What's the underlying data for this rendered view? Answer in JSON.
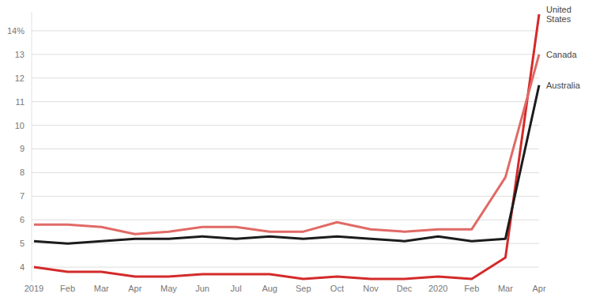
{
  "chart_data": {
    "type": "line",
    "categories": [
      "2019",
      "Feb",
      "Mar",
      "Apr",
      "May",
      "Jun",
      "Jul",
      "Aug",
      "Sep",
      "Oct",
      "Nov",
      "Dec",
      "2020",
      "Feb",
      "Mar",
      "Apr"
    ],
    "series": [
      {
        "name": "United States",
        "color": "#d42a2a",
        "values": [
          4.0,
          3.8,
          3.8,
          3.6,
          3.6,
          3.7,
          3.7,
          3.7,
          3.5,
          3.6,
          3.5,
          3.5,
          3.6,
          3.5,
          4.4,
          14.7
        ]
      },
      {
        "name": "Canada",
        "color": "#e06a66",
        "values": [
          5.8,
          5.8,
          5.7,
          5.4,
          5.5,
          5.7,
          5.7,
          5.5,
          5.5,
          5.9,
          5.6,
          5.5,
          5.6,
          5.6,
          7.8,
          13.0
        ]
      },
      {
        "name": "Australia",
        "color": "#1c1c1c",
        "values": [
          5.1,
          5.0,
          5.1,
          5.2,
          5.2,
          5.3,
          5.2,
          5.3,
          5.2,
          5.3,
          5.2,
          5.1,
          5.3,
          5.1,
          5.2,
          11.7
        ]
      }
    ],
    "ylim": [
      3.4,
      14.8
    ],
    "yticks": [
      4,
      5,
      6,
      7,
      8,
      9,
      10,
      11,
      12,
      13,
      {
        "value": 14,
        "label": "14%"
      }
    ],
    "grid": true
  }
}
